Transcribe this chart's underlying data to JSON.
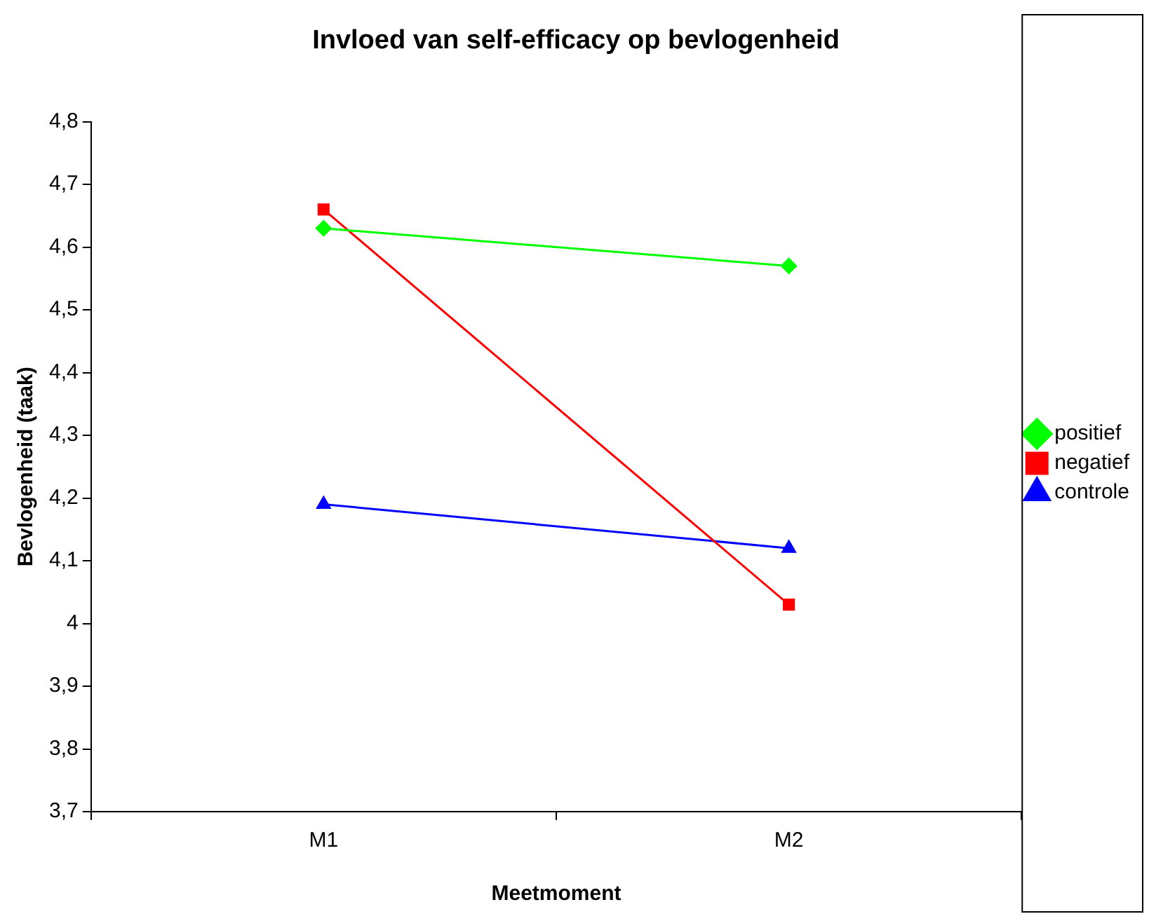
{
  "chart_data": {
    "type": "line",
    "title": "Invloed van self-efficacy op bevlogenheid",
    "xlabel": "Meetmoment",
    "ylabel": "Bevlogenheid (taak)",
    "categories": [
      "M1",
      "M2"
    ],
    "series": [
      {
        "name": "positief",
        "color": "#00ff00",
        "marker": "diamond",
        "values": [
          4.63,
          4.57
        ]
      },
      {
        "name": "negatief",
        "color": "#ff0000",
        "marker": "square",
        "values": [
          4.66,
          4.03
        ]
      },
      {
        "name": "controle",
        "color": "#0000ff",
        "marker": "triangle",
        "values": [
          4.19,
          4.12
        ]
      }
    ],
    "ylim": [
      3.7,
      4.8
    ],
    "yticks": [
      {
        "value": 3.7,
        "label": "3,7"
      },
      {
        "value": 3.8,
        "label": "3,8"
      },
      {
        "value": 3.9,
        "label": "3,9"
      },
      4,
      {
        "value": 4.1,
        "label": "4,1"
      },
      {
        "value": 4.2,
        "label": "4,2"
      },
      {
        "value": 4.3,
        "label": "4,3"
      },
      {
        "value": 4.4,
        "label": "4,4"
      },
      {
        "value": 4.5,
        "label": "4,5"
      },
      {
        "value": 4.6,
        "label": "4,6"
      },
      {
        "value": 4.7,
        "label": "4,7"
      },
      {
        "value": 4.8,
        "label": "4,8"
      }
    ],
    "grid": false,
    "legend": "right",
    "line_style": "solid"
  }
}
